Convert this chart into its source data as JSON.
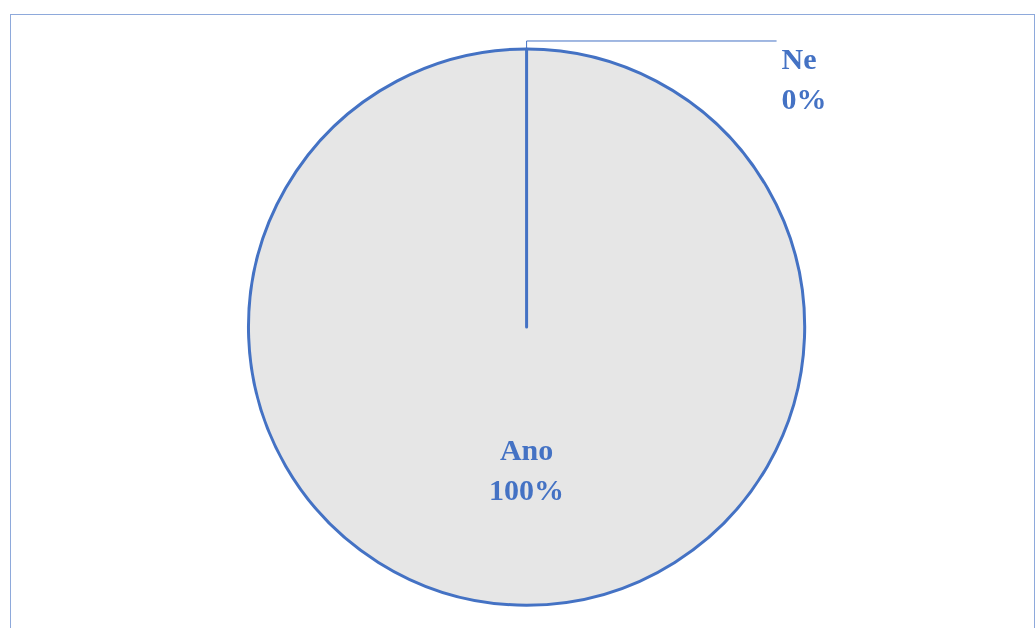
{
  "chart_data": {
    "type": "pie",
    "categories": [
      "Ano",
      "Ne"
    ],
    "values": [
      100,
      0
    ],
    "colors": [
      "#e6e6e6",
      "#e6e6e6"
    ],
    "value_labels": [
      "100%",
      "0%"
    ]
  }
}
